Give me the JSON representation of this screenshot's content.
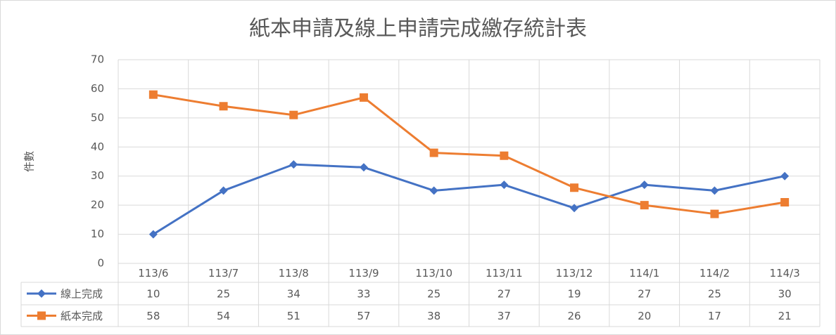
{
  "chart_data": {
    "type": "line",
    "title": "紙本申請及線上申請完成繳存統計表",
    "y_label": "件數",
    "categories": [
      "113/6",
      "113/7",
      "113/8",
      "113/9",
      "113/10",
      "113/11",
      "113/12",
      "114/1",
      "114/2",
      "114/3"
    ],
    "series": [
      {
        "name": "線上完成",
        "color": "#4472c4",
        "marker": "diamond",
        "values": [
          10,
          25,
          34,
          33,
          25,
          27,
          19,
          27,
          25,
          30
        ]
      },
      {
        "name": "紙本完成",
        "color": "#ed7d31",
        "marker": "square",
        "values": [
          58,
          54,
          51,
          57,
          38,
          37,
          26,
          20,
          17,
          21
        ]
      }
    ],
    "ylim": [
      0,
      70
    ],
    "yticks": [
      0,
      10,
      20,
      30,
      40,
      50,
      60,
      70
    ],
    "grid": true,
    "data_table": true
  }
}
